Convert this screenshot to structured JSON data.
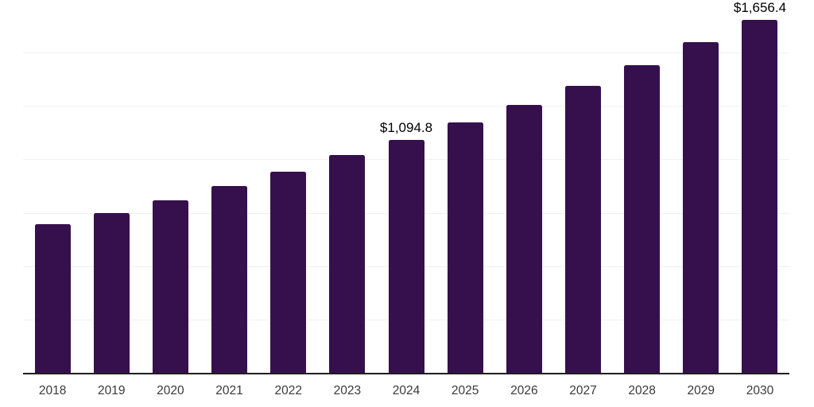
{
  "chart_data": {
    "type": "bar",
    "title": "",
    "xlabel": "",
    "ylabel": "",
    "categories": [
      "2018",
      "2019",
      "2020",
      "2021",
      "2022",
      "2023",
      "2024",
      "2025",
      "2026",
      "2027",
      "2028",
      "2029",
      "2030"
    ],
    "values": [
      698.6,
      751.2,
      810.9,
      878.2,
      944.3,
      1023.9,
      1094.8,
      1177.2,
      1258.2,
      1349.1,
      1446.2,
      1552.0,
      1656.4
    ],
    "value_labels": {
      "2024": "$1,094.8",
      "2030": "$1,656.4"
    },
    "ylim": [
      0,
      1750
    ],
    "gridline_step": 250,
    "grid": true,
    "legend": "none",
    "y_axis_tick_labels": "hidden",
    "bar_color": "#36104d",
    "axis_line_color": "#1f1f1f",
    "gridline_color": "#f1f1f1",
    "value_label_color": "#000000",
    "x_tick_label_color": "#3a3a3a"
  }
}
